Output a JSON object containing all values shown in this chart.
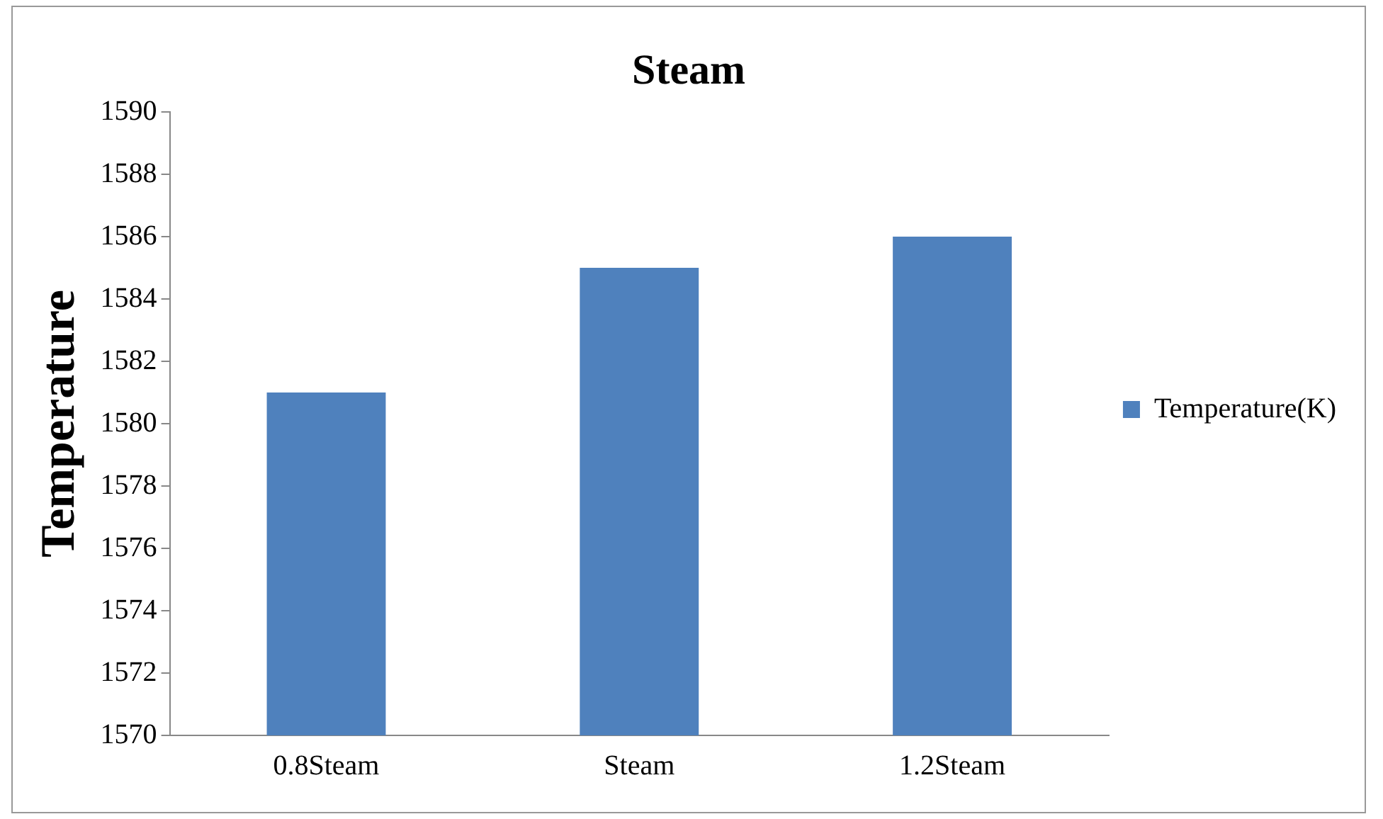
{
  "chart_data": {
    "type": "bar",
    "title": "Steam",
    "ylabel": "Temperature",
    "categories": [
      "0.8Steam",
      "Steam",
      "1.2Steam"
    ],
    "series": [
      {
        "name": "Temperature(K)",
        "color": "#4f81bd",
        "values": [
          1581,
          1585,
          1586
        ]
      }
    ],
    "ylim": [
      1570,
      1590
    ],
    "yticks": [
      1570,
      1572,
      1574,
      1576,
      1578,
      1580,
      1582,
      1584,
      1586,
      1588,
      1590
    ],
    "grid": false,
    "legend": "right"
  }
}
